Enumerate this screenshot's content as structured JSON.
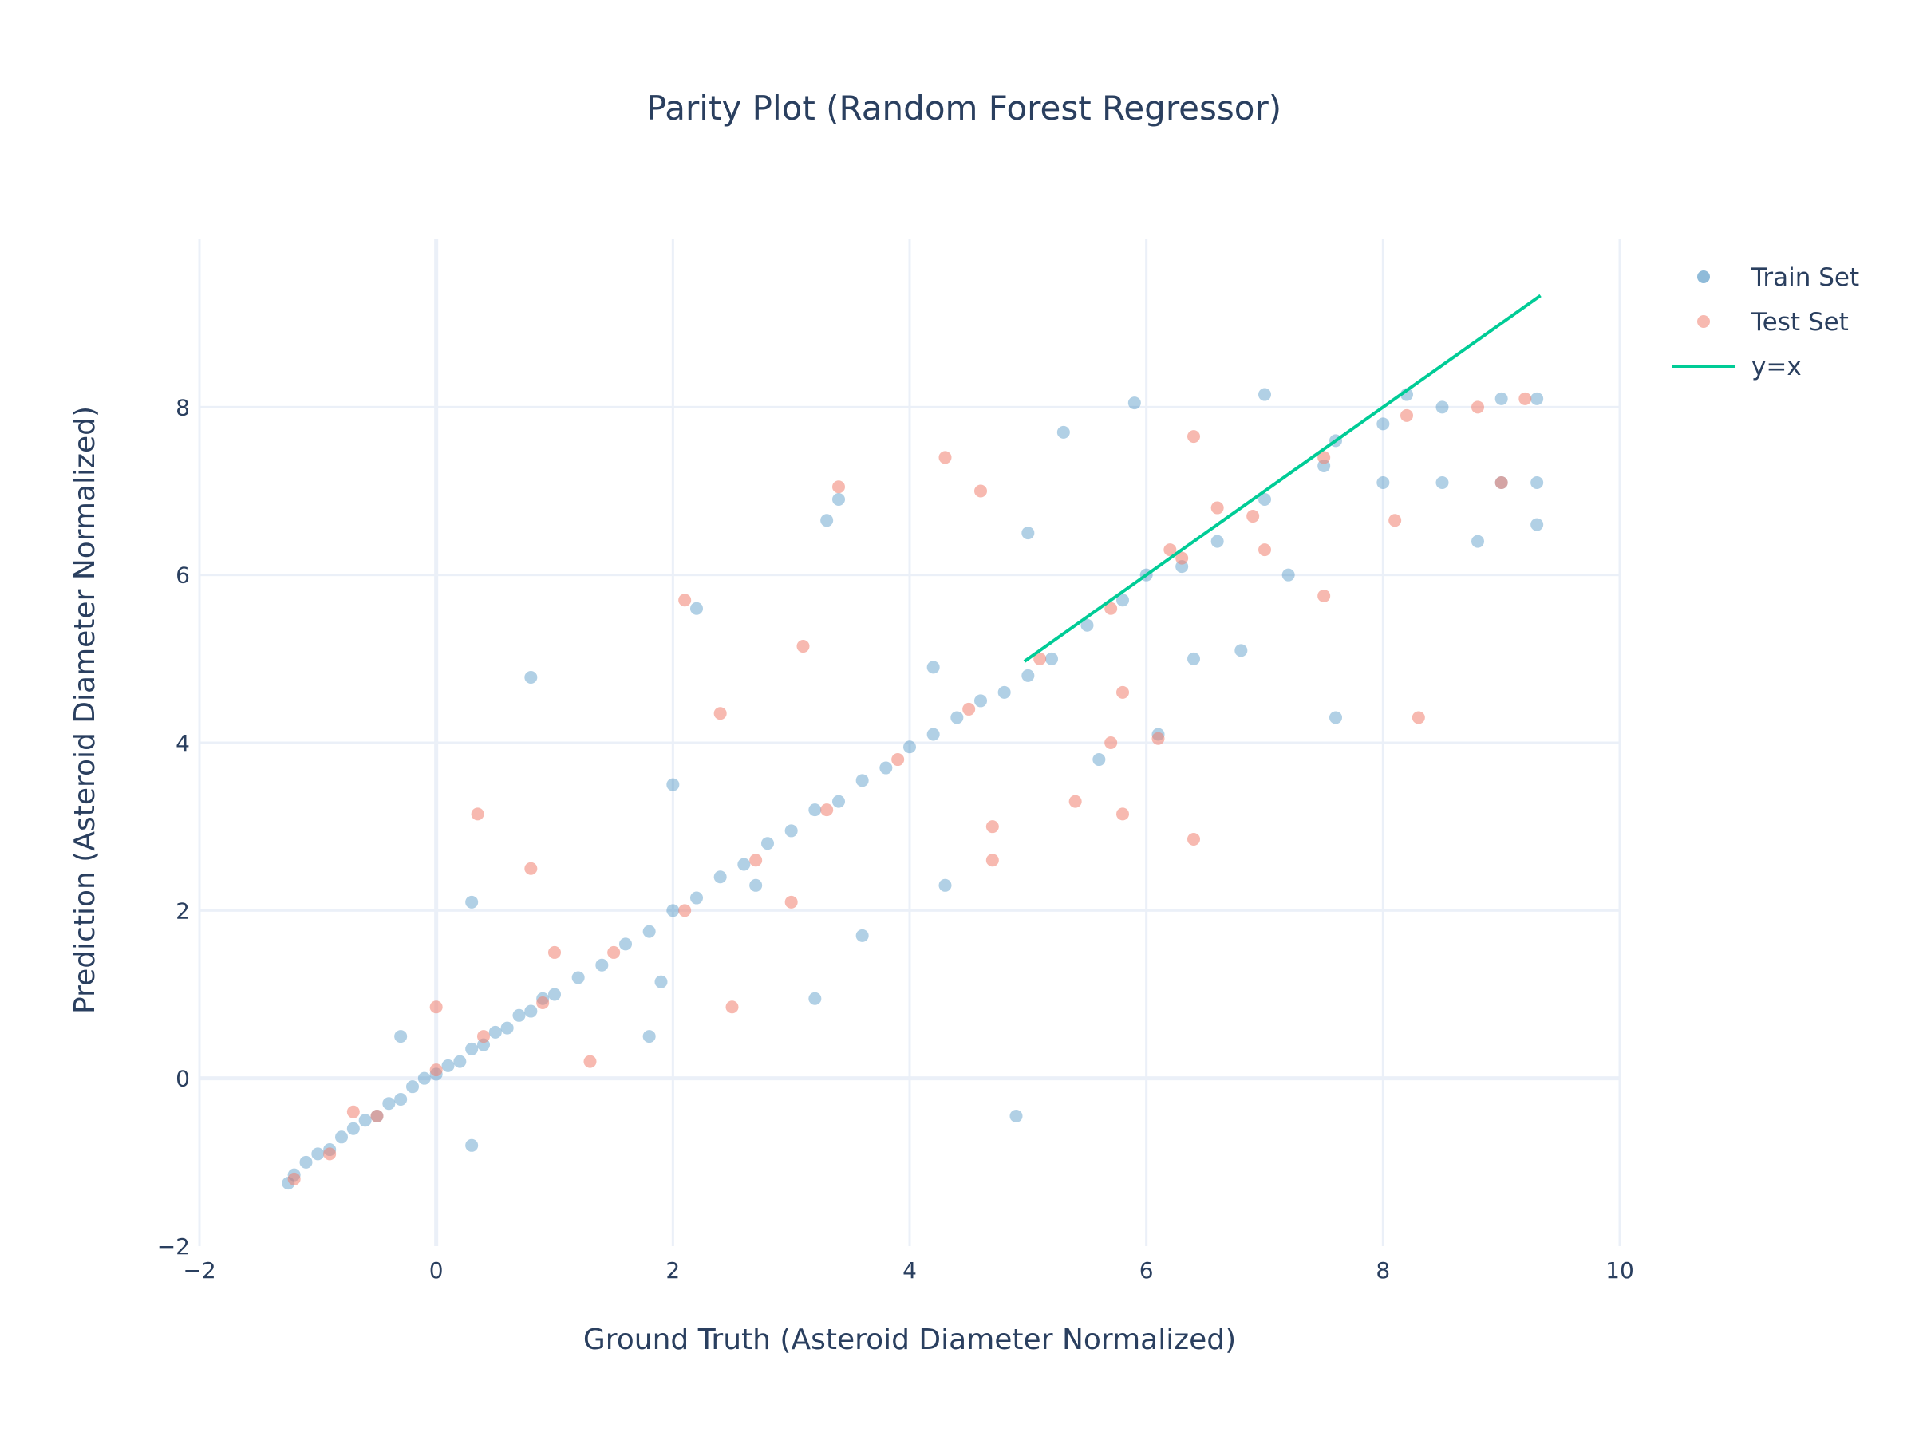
{
  "chart_data": {
    "type": "scatter",
    "title": "Parity Plot (Random Forest Regressor)",
    "xlabel": "Ground Truth (Asteroid Diameter Normalized)",
    "ylabel": "Prediction (Asteroid Diameter Normalized)",
    "xlim": [
      -2,
      10
    ],
    "ylim": [
      -2,
      10
    ],
    "x_ticks": [
      "−2",
      "0",
      "2",
      "4",
      "6",
      "8",
      "10"
    ],
    "y_ticks": [
      "−2",
      "0",
      "2",
      "4",
      "6",
      "8"
    ],
    "grid": true,
    "legend_position": "top-right",
    "series": [
      {
        "name": "Train Set",
        "kind": "markers",
        "color": "#1f77b4",
        "opacity": 0.35,
        "points": [
          [
            -1.25,
            -1.25
          ],
          [
            -1.2,
            -1.15
          ],
          [
            -1.1,
            -1.0
          ],
          [
            -1.0,
            -0.9
          ],
          [
            -0.9,
            -0.85
          ],
          [
            -0.8,
            -0.7
          ],
          [
            -0.7,
            -0.6
          ],
          [
            -0.6,
            -0.5
          ],
          [
            -0.5,
            -0.45
          ],
          [
            -0.4,
            -0.3
          ],
          [
            -0.3,
            -0.25
          ],
          [
            -0.2,
            -0.1
          ],
          [
            -0.1,
            0.0
          ],
          [
            0.0,
            0.05
          ],
          [
            0.1,
            0.15
          ],
          [
            0.2,
            0.2
          ],
          [
            0.3,
            0.35
          ],
          [
            0.4,
            0.4
          ],
          [
            0.5,
            0.55
          ],
          [
            0.6,
            0.6
          ],
          [
            0.7,
            0.75
          ],
          [
            0.8,
            0.8
          ],
          [
            0.9,
            0.95
          ],
          [
            1.0,
            1.0
          ],
          [
            1.2,
            1.2
          ],
          [
            1.4,
            1.35
          ],
          [
            1.6,
            1.6
          ],
          [
            1.8,
            1.75
          ],
          [
            2.0,
            2.0
          ],
          [
            2.2,
            2.15
          ],
          [
            2.4,
            2.4
          ],
          [
            2.6,
            2.55
          ],
          [
            2.8,
            2.8
          ],
          [
            3.0,
            2.95
          ],
          [
            3.2,
            3.2
          ],
          [
            3.4,
            3.3
          ],
          [
            3.6,
            3.55
          ],
          [
            3.8,
            3.7
          ],
          [
            4.0,
            3.95
          ],
          [
            4.2,
            4.1
          ],
          [
            4.4,
            4.3
          ],
          [
            4.6,
            4.5
          ],
          [
            4.8,
            4.6
          ],
          [
            5.0,
            4.8
          ],
          [
            5.2,
            5.0
          ],
          [
            5.5,
            5.4
          ],
          [
            5.8,
            5.7
          ],
          [
            6.0,
            6.0
          ],
          [
            6.3,
            6.1
          ],
          [
            6.6,
            6.4
          ],
          [
            7.0,
            6.9
          ],
          [
            7.5,
            7.3
          ],
          [
            8.0,
            7.8
          ],
          [
            8.5,
            8.0
          ],
          [
            9.0,
            8.1
          ],
          [
            9.3,
            8.1
          ],
          [
            8.0,
            7.1
          ],
          [
            8.5,
            7.1
          ],
          [
            9.0,
            7.1
          ],
          [
            9.3,
            7.1
          ],
          [
            7.6,
            7.6
          ],
          [
            8.2,
            8.15
          ],
          [
            7.0,
            8.15
          ],
          [
            5.9,
            8.05
          ],
          [
            0.8,
            4.78
          ],
          [
            4.9,
            -0.45
          ],
          [
            7.6,
            4.3
          ],
          [
            3.3,
            6.65
          ],
          [
            2.2,
            5.6
          ],
          [
            3.4,
            6.9
          ],
          [
            5.3,
            7.7
          ],
          [
            6.8,
            5.1
          ],
          [
            9.3,
            6.6
          ],
          [
            1.8,
            0.5
          ],
          [
            3.2,
            0.95
          ],
          [
            4.3,
            2.3
          ],
          [
            2.0,
            3.5
          ],
          [
            0.3,
            2.1
          ],
          [
            -0.3,
            0.5
          ],
          [
            0.3,
            -0.8
          ],
          [
            1.9,
            1.15
          ],
          [
            3.6,
            1.7
          ],
          [
            5.0,
            6.5
          ],
          [
            6.1,
            4.1
          ],
          [
            7.2,
            6.0
          ],
          [
            8.8,
            6.4
          ],
          [
            4.2,
            4.9
          ],
          [
            5.6,
            3.8
          ],
          [
            6.4,
            5.0
          ],
          [
            2.7,
            2.3
          ]
        ]
      },
      {
        "name": "Test Set",
        "kind": "markers",
        "color": "#f08070",
        "opacity": 0.55,
        "points": [
          [
            -1.2,
            -1.2
          ],
          [
            -0.9,
            -0.9
          ],
          [
            -0.5,
            -0.45
          ],
          [
            0.0,
            0.1
          ],
          [
            0.4,
            0.5
          ],
          [
            0.9,
            0.9
          ],
          [
            1.5,
            1.5
          ],
          [
            2.1,
            2.0
          ],
          [
            2.7,
            2.6
          ],
          [
            3.3,
            3.2
          ],
          [
            3.9,
            3.8
          ],
          [
            4.5,
            4.4
          ],
          [
            5.1,
            5.0
          ],
          [
            5.7,
            5.6
          ],
          [
            6.3,
            6.2
          ],
          [
            6.9,
            6.7
          ],
          [
            7.5,
            7.4
          ],
          [
            8.2,
            7.9
          ],
          [
            8.8,
            8.0
          ],
          [
            9.2,
            8.1
          ],
          [
            3.4,
            7.05
          ],
          [
            4.3,
            7.4
          ],
          [
            6.4,
            7.65
          ],
          [
            8.3,
            4.3
          ],
          [
            6.4,
            2.85
          ],
          [
            5.8,
            3.15
          ],
          [
            0.35,
            3.15
          ],
          [
            0.8,
            2.5
          ],
          [
            3.1,
            5.15
          ],
          [
            2.1,
            5.7
          ],
          [
            5.4,
            3.3
          ],
          [
            4.7,
            2.6
          ],
          [
            2.5,
            0.85
          ],
          [
            0.0,
            0.85
          ],
          [
            1.3,
            0.2
          ],
          [
            7.0,
            6.3
          ],
          [
            8.1,
            6.65
          ],
          [
            9.0,
            7.1
          ],
          [
            6.2,
            6.3
          ],
          [
            7.5,
            5.75
          ],
          [
            4.6,
            7.0
          ],
          [
            5.7,
            4.0
          ],
          [
            6.1,
            4.05
          ],
          [
            5.8,
            4.6
          ],
          [
            3.0,
            2.1
          ],
          [
            1.0,
            1.5
          ],
          [
            -0.7,
            -0.4
          ],
          [
            2.4,
            4.35
          ],
          [
            4.7,
            3.0
          ],
          [
            6.6,
            6.8
          ]
        ]
      },
      {
        "name": "y=x",
        "kind": "line",
        "color": "#00cc96",
        "points": [
          [
            4.97,
            4.97
          ],
          [
            9.33,
            9.33
          ]
        ]
      }
    ]
  }
}
